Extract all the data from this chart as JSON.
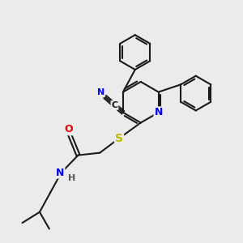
{
  "bg_color": "#ebebeb",
  "bond_color": "#1a1a1a",
  "bond_width": 1.5,
  "atom_colors": {
    "N": "#0000ee",
    "S": "#bbbb00",
    "O": "#ee0000",
    "C": "#1a1a1a",
    "H": "#555555"
  },
  "font_size": 9,
  "fig_size": [
    3.0,
    3.0
  ],
  "dpi": 100
}
